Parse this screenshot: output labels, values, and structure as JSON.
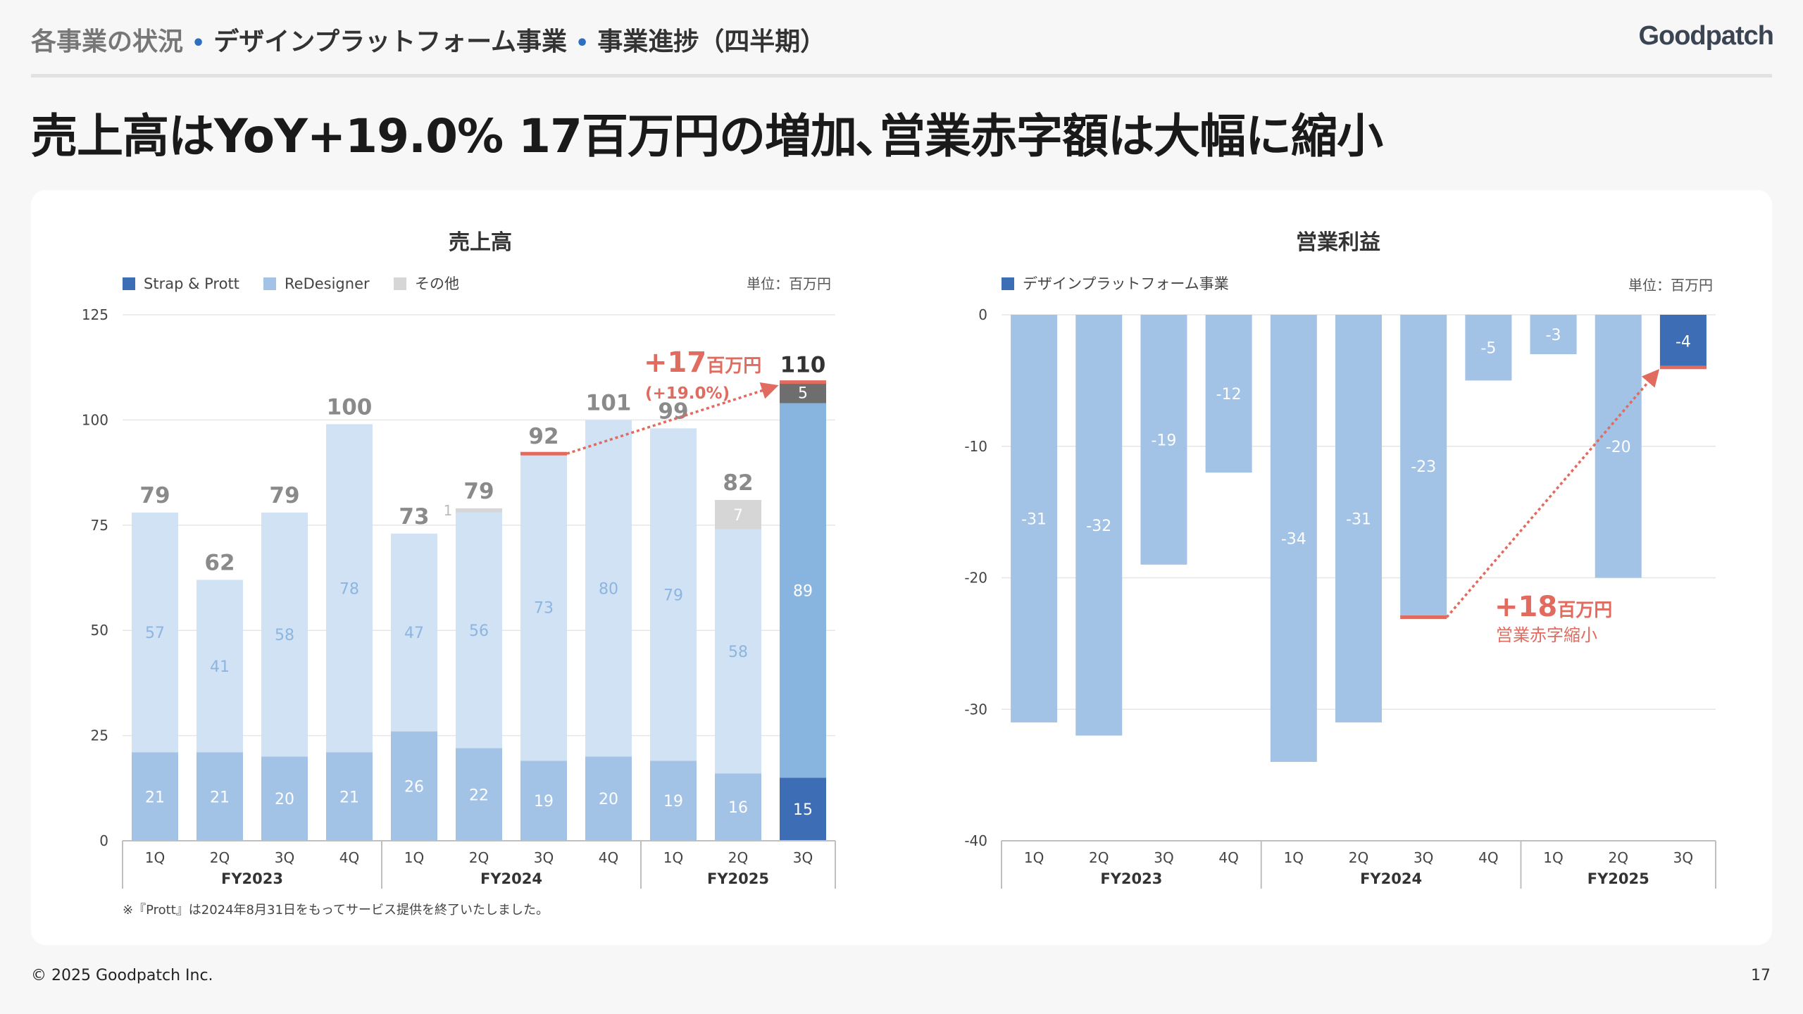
{
  "header": {
    "breadcrumb": [
      "各事業の状況",
      "デザインプラットフォーム事業",
      "事業進捗（四半期）"
    ],
    "breadcrumb_sep": "•",
    "logo": "Goodpatch"
  },
  "headline": "売上高はYoY+19.0% 17百万円の増加､営業赤字額は大幅に縮小",
  "footer": {
    "copyright": "© 2025 Goodpatch Inc.",
    "page": "17"
  },
  "colors": {
    "dark_blue": "#3d6db5",
    "mid_blue": "#88b4e0",
    "light_blue": "#d0e2f3",
    "bottom_blue": "#a2c2e6",
    "grey": "#d6d6d6",
    "dark_grey": "#6e6e6e",
    "accent": "#e06b5e"
  },
  "chart_data": [
    {
      "type": "bar",
      "stacked": true,
      "title": "売上高",
      "unit": "単位：百万円",
      "legend": [
        "Strap & Prott",
        "ReDesigner",
        "その他"
      ],
      "fiscal_years": [
        "FY2023",
        "FY2024",
        "FY2025"
      ],
      "categories": [
        "1Q",
        "2Q",
        "3Q",
        "4Q",
        "1Q",
        "2Q",
        "3Q",
        "4Q",
        "1Q",
        "2Q",
        "3Q"
      ],
      "yticks": [
        "125",
        "100",
        "75",
        "50",
        "25",
        "0"
      ],
      "ylim": [
        0,
        125
      ],
      "series": [
        {
          "name": "bottom",
          "values": [
            21,
            21,
            20,
            21,
            26,
            22,
            19,
            20,
            19,
            16,
            15
          ],
          "labels": [
            "21",
            "21",
            "20",
            "21",
            "26",
            "22",
            "19",
            "20",
            "19",
            "16",
            "15"
          ]
        },
        {
          "name": "middle",
          "values": [
            57,
            41,
            58,
            78,
            47,
            56,
            73,
            80,
            79,
            58,
            89
          ],
          "labels": [
            "57",
            "41",
            "58",
            "78",
            "47",
            "56",
            "73",
            "80",
            "79",
            "58",
            "89"
          ]
        },
        {
          "name": "top",
          "values": [
            0,
            0,
            0,
            0,
            0,
            1,
            0,
            0,
            0,
            7,
            5
          ],
          "labels": [
            "",
            "",
            "",
            "",
            "",
            "1",
            "",
            "",
            "",
            "7",
            "5"
          ]
        }
      ],
      "totals": [
        "79",
        "62",
        "79",
        "100",
        "73",
        "79",
        "92",
        "101",
        "99",
        "82",
        "110"
      ],
      "annotation": {
        "main": "+17",
        "unit": "百万円",
        "pct": "(+19.0%)",
        "from_index": 6,
        "to_index": 10
      },
      "note": "※『Prott』は2024年8月31日をもってサービス提供を終了いたしました。"
    },
    {
      "type": "bar",
      "title": "営業利益",
      "unit": "単位：百万円",
      "legend": [
        "デザインプラットフォーム事業"
      ],
      "fiscal_years": [
        "FY2023",
        "FY2024",
        "FY2025"
      ],
      "categories": [
        "1Q",
        "2Q",
        "3Q",
        "4Q",
        "1Q",
        "2Q",
        "3Q",
        "4Q",
        "1Q",
        "2Q",
        "3Q"
      ],
      "yticks": [
        "0",
        "-10",
        "-20",
        "-30",
        "-40"
      ],
      "ylim": [
        -40,
        0
      ],
      "values": [
        -31,
        -32,
        -19,
        -12,
        -34,
        -31,
        -23,
        -5,
        -3,
        -20,
        -4
      ],
      "labels": [
        "-31",
        "-32",
        "-19",
        "-12",
        "-34",
        "-31",
        "-23",
        "-5",
        "-3",
        "-20",
        "-4"
      ],
      "annotation": {
        "main": "+18",
        "unit": "百万円",
        "sub": "営業赤字縮小",
        "from_index": 6,
        "to_index": 10
      }
    }
  ]
}
